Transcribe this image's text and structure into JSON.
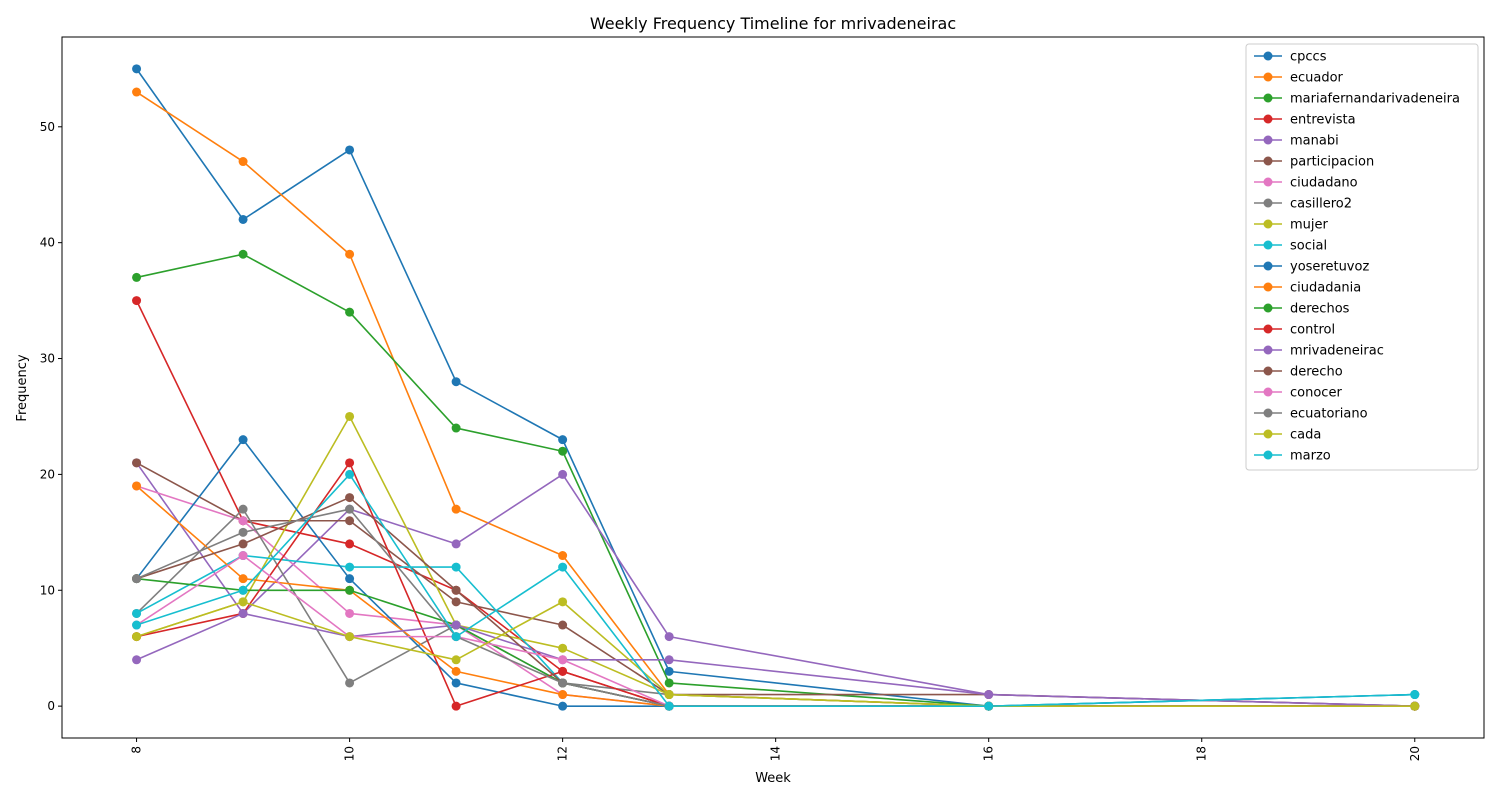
{
  "chart_data": {
    "type": "line",
    "title": "Weekly Frequency Timeline for mrivadeneirac",
    "xlabel": "Week",
    "ylabel": "Frequency",
    "xlim": [
      7.3,
      20.65
    ],
    "ylim": [
      -2.75,
      57.75
    ],
    "x_ticks": [
      8,
      10,
      12,
      14,
      16,
      18,
      20
    ],
    "y_ticks": [
      0,
      10,
      20,
      30,
      40,
      50
    ],
    "x": [
      8,
      9,
      10,
      11,
      12,
      13,
      16,
      20
    ],
    "legend_position": "top-right",
    "grid": false,
    "series": [
      {
        "name": "cpccs",
        "color": "#1f77b4",
        "values": [
          55,
          42,
          48,
          28,
          23,
          3,
          0,
          0
        ]
      },
      {
        "name": "ecuador",
        "color": "#ff7f0e",
        "values": [
          53,
          47,
          39,
          17,
          13,
          1,
          0,
          0
        ]
      },
      {
        "name": "mariafernandarivadeneira",
        "color": "#2ca02c",
        "values": [
          37,
          39,
          34,
          24,
          22,
          2,
          0,
          0
        ]
      },
      {
        "name": "entrevista",
        "color": "#d62728",
        "values": [
          35,
          16,
          14,
          10,
          3,
          0,
          0,
          0
        ]
      },
      {
        "name": "manabi",
        "color": "#9467bd",
        "values": [
          21,
          8,
          17,
          14,
          20,
          6,
          1,
          0
        ]
      },
      {
        "name": "participacion",
        "color": "#8c564b",
        "values": [
          21,
          16,
          16,
          9,
          7,
          1,
          1,
          0
        ]
      },
      {
        "name": "ciudadano",
        "color": "#e377c2",
        "values": [
          19,
          16,
          8,
          7,
          1,
          0,
          0,
          0
        ]
      },
      {
        "name": "casillero2",
        "color": "#7f7f7f",
        "values": [
          8,
          17,
          2,
          7,
          2,
          1,
          0,
          0
        ]
      },
      {
        "name": "mujer",
        "color": "#bcbd22",
        "values": [
          6,
          9,
          25,
          7,
          5,
          1,
          0,
          0
        ]
      },
      {
        "name": "social",
        "color": "#17becf",
        "values": [
          8,
          13,
          12,
          12,
          2,
          0,
          0,
          1
        ]
      },
      {
        "name": "yoseretuvoz",
        "color": "#1f77b4",
        "values": [
          11,
          23,
          11,
          2,
          0,
          0,
          0,
          1
        ]
      },
      {
        "name": "ciudadania",
        "color": "#ff7f0e",
        "values": [
          19,
          11,
          10,
          3,
          1,
          0,
          0,
          0
        ]
      },
      {
        "name": "derechos",
        "color": "#2ca02c",
        "values": [
          11,
          10,
          10,
          7,
          2,
          0,
          0,
          0
        ]
      },
      {
        "name": "control",
        "color": "#d62728",
        "values": [
          6,
          8,
          21,
          0,
          3,
          0,
          0,
          0
        ]
      },
      {
        "name": "mrivadeneirac",
        "color": "#9467bd",
        "values": [
          4,
          8,
          6,
          7,
          4,
          4,
          1,
          0
        ]
      },
      {
        "name": "derecho",
        "color": "#8c564b",
        "values": [
          11,
          14,
          18,
          10,
          2,
          0,
          0,
          0
        ]
      },
      {
        "name": "conocer",
        "color": "#e377c2",
        "values": [
          7,
          13,
          6,
          6,
          4,
          0,
          0,
          0
        ]
      },
      {
        "name": "ecuatoriano",
        "color": "#7f7f7f",
        "values": [
          11,
          15,
          17,
          6,
          2,
          0,
          0,
          0
        ]
      },
      {
        "name": "cada",
        "color": "#bcbd22",
        "values": [
          6,
          9,
          6,
          4,
          9,
          1,
          0,
          0
        ]
      },
      {
        "name": "marzo",
        "color": "#17becf",
        "values": [
          7,
          10,
          20,
          6,
          12,
          0,
          0,
          1
        ]
      }
    ]
  }
}
